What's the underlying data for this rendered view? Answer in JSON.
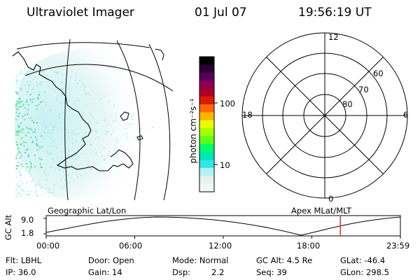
{
  "header": {
    "title": "Ultraviolet Imager",
    "date": "01 Jul 07",
    "time": "19:56:19 UT"
  },
  "colorbar": {
    "unit_label": "photon cm⁻²s⁻¹",
    "ticks": [
      "100",
      "10"
    ],
    "colors": [
      "#000000",
      "#2a0035",
      "#55005a",
      "#8a0055",
      "#b0002a",
      "#d81c00",
      "#ff6a00",
      "#ffb400",
      "#e6ff00",
      "#a6ff00",
      "#5cff1a",
      "#00ff66",
      "#00e6b4",
      "#33e6e6",
      "#b3f2f2",
      "#e6f2f2",
      "#f4f6f6"
    ]
  },
  "polar": {
    "hour_labels": [
      "12",
      "18",
      "6",
      "0"
    ],
    "lat_labels": [
      "60",
      "70",
      "80"
    ]
  },
  "timeline": {
    "ylabel": "GC Alt",
    "y_ticks": [
      "9.0",
      "1.8"
    ],
    "left_label": "Geographic Lat/Lon",
    "right_label": "Apex MLat/MLT",
    "x_ticks": [
      "00:00",
      "06:00",
      "12:00",
      "18:00",
      "23:59"
    ],
    "cursor_time": "19:56",
    "cursor_color": "#e03030"
  },
  "status": {
    "flt": "Flt: LBHL",
    "ip": "IP: 36.0",
    "door": "Door: Open",
    "gain": "Gain: 14",
    "mode": "Mode: Normal",
    "dsp_label": "Dsp:",
    "dsp_value": "2.2",
    "gc_alt": "GC Alt: 4.5 Re",
    "seq": "Seq: 39",
    "glat": "GLat: -46.4",
    "glon": "GLon: 298.5"
  }
}
